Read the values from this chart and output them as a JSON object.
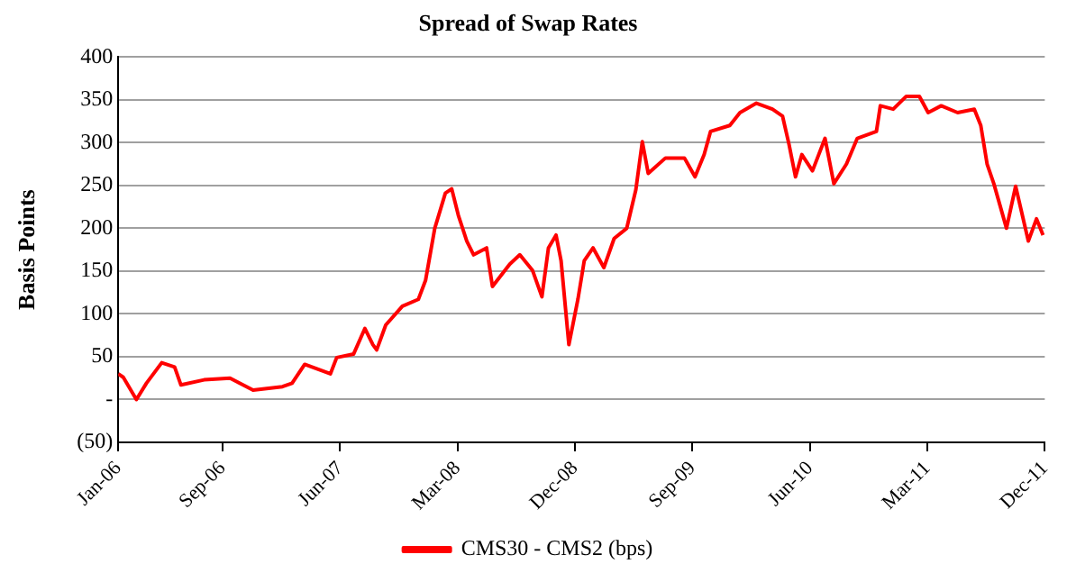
{
  "chart_data": {
    "type": "line",
    "title": "Spread of Swap Rates",
    "ylabel": "Basis Points",
    "x": [
      "2006-01-01",
      "2006-01-13",
      "2006-02-12",
      "2006-03-06",
      "2006-04-11",
      "2006-05-11",
      "2006-05-26",
      "2006-07-19",
      "2006-09-18",
      "2006-11-11",
      "2007-01-19",
      "2007-02-10",
      "2007-03-10",
      "2007-05-09",
      "2007-05-24",
      "2007-07-02",
      "2007-07-29",
      "2007-08-17",
      "2007-08-26",
      "2007-09-16",
      "2007-10-25",
      "2007-12-01",
      "2007-12-18",
      "2008-01-09",
      "2008-02-03",
      "2008-02-17",
      "2008-03-03",
      "2008-03-23",
      "2008-04-08",
      "2008-05-08",
      "2008-05-22",
      "2008-07-01",
      "2008-07-25",
      "2008-08-24",
      "2008-09-15",
      "2008-09-30",
      "2008-10-18",
      "2008-10-30",
      "2008-11-17",
      "2008-12-08",
      "2008-12-23",
      "2009-01-13",
      "2009-02-07",
      "2009-03-01",
      "2009-03-31",
      "2009-04-21",
      "2009-05-06",
      "2009-05-20",
      "2009-06-29",
      "2009-08-13",
      "2009-09-07",
      "2009-09-28",
      "2009-10-13",
      "2009-11-27",
      "2009-12-21",
      "2010-01-29",
      "2010-03-05",
      "2010-03-29",
      "2010-04-13",
      "2010-04-28",
      "2010-05-13",
      "2010-06-07",
      "2010-07-06",
      "2010-07-27",
      "2010-08-26",
      "2010-09-20",
      "2010-11-04",
      "2010-11-13",
      "2010-12-13",
      "2011-01-13",
      "2011-02-12",
      "2011-03-03",
      "2011-04-03",
      "2011-05-11",
      "2011-06-19",
      "2011-07-04",
      "2011-07-19",
      "2011-08-04",
      "2011-09-03",
      "2011-09-24",
      "2011-10-24",
      "2011-11-12",
      "2011-11-27"
    ],
    "series": [
      {
        "name": "CMS30 - CMS2 (bps)",
        "color": "#ff0000",
        "values": [
          30,
          26,
          0,
          19,
          43,
          38,
          17,
          23,
          25,
          11,
          15,
          19,
          41,
          30,
          49,
          53,
          83,
          64,
          58,
          87,
          109,
          117,
          139,
          200,
          241,
          246,
          215,
          185,
          169,
          177,
          132,
          158,
          169,
          151,
          120,
          177,
          192,
          162,
          64,
          117,
          162,
          177,
          154,
          188,
          200,
          245,
          301,
          264,
          282,
          282,
          260,
          286,
          313,
          320,
          335,
          346,
          339,
          331,
          298,
          260,
          286,
          267,
          305,
          252,
          275,
          305,
          313,
          343,
          339,
          354,
          354,
          335,
          343,
          335,
          339,
          320,
          275,
          252,
          200,
          249,
          185,
          211,
          192
        ]
      }
    ],
    "xlim": [
      "2006-01",
      "2011-12"
    ],
    "xticks": [
      {
        "value": "2006-01",
        "label": "Jan-06"
      },
      {
        "value": "2006-09",
        "label": "Sep-06"
      },
      {
        "value": "2007-06",
        "label": "Jun-07"
      },
      {
        "value": "2008-03",
        "label": "Mar-08"
      },
      {
        "value": "2008-12",
        "label": "Dec-08"
      },
      {
        "value": "2009-09",
        "label": "Sep-09"
      },
      {
        "value": "2010-06",
        "label": "Jun-10"
      },
      {
        "value": "2011-03",
        "label": "Mar-11"
      },
      {
        "value": "2011-12",
        "label": "Dec-11"
      }
    ],
    "ylim": [
      -50,
      400
    ],
    "yticks": [
      {
        "value": -50,
        "label": "(50)"
      },
      {
        "value": 0,
        "label": "-"
      },
      50,
      100,
      150,
      200,
      250,
      300,
      350,
      400
    ],
    "grid": "y",
    "legend": "bottom",
    "marker": "none",
    "line_style": "solid"
  }
}
